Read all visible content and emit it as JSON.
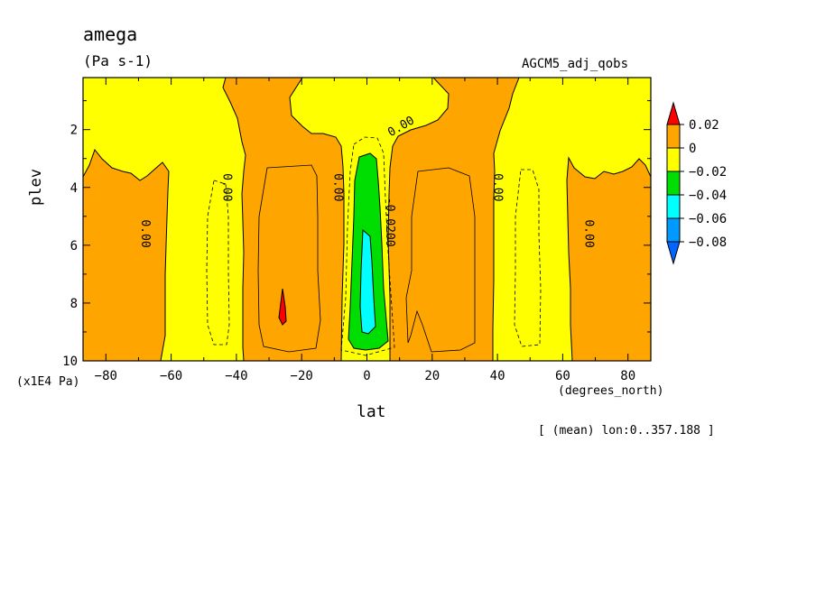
{
  "chart_data": {
    "type": "heatmap",
    "title": "amega",
    "units": "(Pa s-1)",
    "dataset": "AGCM5_adj_qobs",
    "xlabel": "lat",
    "ylabel": "plev",
    "x_unit": "(degrees_north)",
    "y_unit": "(x1E4 Pa)",
    "note": "[ (mean) lon:0..357.188 ]",
    "xlim": [
      -87,
      87
    ],
    "ylim": [
      10,
      0.2
    ],
    "x_ticks": [
      -80,
      -60,
      -40,
      -20,
      0,
      20,
      40,
      60,
      80
    ],
    "x_tick_labels": [
      "−80",
      "−60",
      "−40",
      "−20",
      "0",
      "20",
      "40",
      "60",
      "80"
    ],
    "y_ticks": [
      2,
      4,
      6,
      8,
      10
    ],
    "y_tick_labels": [
      "2",
      "4",
      "6",
      "8",
      "10"
    ],
    "colorbar": {
      "levels": [
        "0.02",
        "0",
        "−0.02",
        "−0.04",
        "−0.06",
        "−0.08"
      ],
      "bands": [
        {
          "label": "> 0.02",
          "color": "#ff0000"
        },
        {
          "label": "0 to 0.02",
          "color": "#ffa500"
        },
        {
          "label": "-0.02 to 0",
          "color": "#ffff00"
        },
        {
          "label": "-0.04 to -0.02",
          "color": "#00dd00"
        },
        {
          "label": "-0.06 to -0.04",
          "color": "#00ffff"
        },
        {
          "label": "-0.08 to -0.06",
          "color": "#0099ff"
        },
        {
          "label": "< -0.08",
          "color": "#0066ff"
        }
      ]
    },
    "contour_labels": [
      {
        "text": "0.00",
        "lat": -69,
        "plev": 5.6
      },
      {
        "text": "0.00",
        "lat": -44,
        "plev": 4.0
      },
      {
        "text": "0.00",
        "lat": -10,
        "plev": 4.0
      },
      {
        "text": "-0.0200",
        "lat": 6,
        "plev": 5.2
      },
      {
        "text": "0.00",
        "lat": 11,
        "plev": 2.0
      },
      {
        "text": "0.00",
        "lat": 39,
        "plev": 4.0
      },
      {
        "text": "0.00",
        "lat": 67,
        "plev": 5.6
      }
    ],
    "regions": [
      {
        "name": "yellow-tropical-column",
        "value_range": "-0.02 to 0",
        "lat": [
          -10,
          10
        ],
        "plev": [
          0.2,
          10
        ]
      },
      {
        "name": "green-core",
        "value_range": "-0.04 to -0.02",
        "lat": [
          -6,
          6
        ],
        "plev": [
          2.8,
          9.6
        ]
      },
      {
        "name": "cyan-core",
        "value_range": "-0.06 to -0.04",
        "lat": [
          -2,
          3
        ],
        "plev": [
          5.5,
          9.1
        ]
      },
      {
        "name": "red-spot",
        "value_range": "> 0.02",
        "lat": [
          -27,
          -26
        ],
        "plev": [
          7.5,
          8.6
        ]
      }
    ],
    "colors": {
      "orange": "#ffa500",
      "yellow": "#ffff00",
      "green": "#00dd00",
      "cyan": "#00ffff",
      "red": "#ff0000",
      "blue": "#0099ff",
      "darkblue": "#0066ff"
    }
  }
}
